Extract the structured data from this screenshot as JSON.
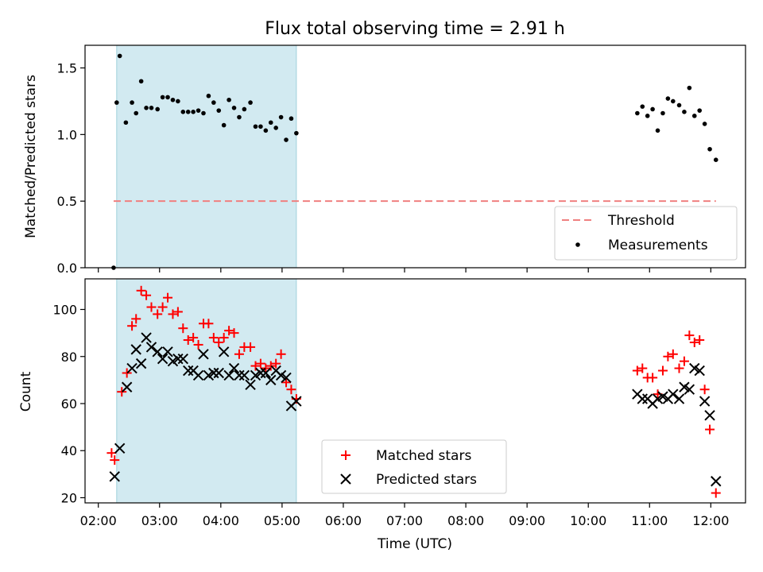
{
  "chart_data": [
    {
      "type": "scatter",
      "title": "Flux total observing time = 2.91 h",
      "xlabel": "",
      "ylabel": "Matched/Predicted stars",
      "xlim": [
        "01:47",
        "12:34"
      ],
      "ylim": [
        0,
        1.67
      ],
      "yticks": [
        "0.0",
        "0.5",
        "1.0",
        "1.5"
      ],
      "shaded_region": {
        "start": "02:18",
        "end": "05:14",
        "color": "#add8e6"
      },
      "threshold": {
        "name": "Threshold",
        "value": 0.5,
        "x_start": "02:15",
        "x_end": "12:05",
        "color": "#f08080"
      },
      "legend": {
        "position": "bottom-right",
        "entries": [
          "Threshold",
          "Measurements"
        ]
      },
      "series": [
        {
          "name": "Measurements",
          "marker": "dot",
          "color": "#000000",
          "points": [
            [
              "02:15",
              0.0
            ],
            [
              "02:18",
              1.24
            ],
            [
              "02:21",
              1.59
            ],
            [
              "02:27",
              1.09
            ],
            [
              "02:33",
              1.24
            ],
            [
              "02:37",
              1.16
            ],
            [
              "02:42",
              1.4
            ],
            [
              "02:47",
              1.2
            ],
            [
              "02:52",
              1.2
            ],
            [
              "02:58",
              1.19
            ],
            [
              "03:03",
              1.28
            ],
            [
              "03:08",
              1.28
            ],
            [
              "03:13",
              1.26
            ],
            [
              "03:18",
              1.25
            ],
            [
              "03:23",
              1.17
            ],
            [
              "03:28",
              1.17
            ],
            [
              "03:33",
              1.17
            ],
            [
              "03:38",
              1.18
            ],
            [
              "03:43",
              1.16
            ],
            [
              "03:48",
              1.29
            ],
            [
              "03:53",
              1.24
            ],
            [
              "03:58",
              1.18
            ],
            [
              "04:03",
              1.07
            ],
            [
              "04:08",
              1.26
            ],
            [
              "04:13",
              1.2
            ],
            [
              "04:18",
              1.13
            ],
            [
              "04:23",
              1.19
            ],
            [
              "04:29",
              1.24
            ],
            [
              "04:34",
              1.06
            ],
            [
              "04:39",
              1.06
            ],
            [
              "04:44",
              1.03
            ],
            [
              "04:49",
              1.09
            ],
            [
              "04:54",
              1.05
            ],
            [
              "04:59",
              1.13
            ],
            [
              "05:04",
              0.96
            ],
            [
              "05:09",
              1.12
            ],
            [
              "05:14",
              1.01
            ],
            [
              "10:48",
              1.16
            ],
            [
              "10:53",
              1.21
            ],
            [
              "10:58",
              1.14
            ],
            [
              "11:03",
              1.19
            ],
            [
              "11:08",
              1.03
            ],
            [
              "11:13",
              1.16
            ],
            [
              "11:18",
              1.27
            ],
            [
              "11:23",
              1.25
            ],
            [
              "11:29",
              1.22
            ],
            [
              "11:34",
              1.17
            ],
            [
              "11:39",
              1.35
            ],
            [
              "11:44",
              1.14
            ],
            [
              "11:49",
              1.18
            ],
            [
              "11:54",
              1.08
            ],
            [
              "11:59",
              0.89
            ],
            [
              "12:05",
              0.81
            ]
          ]
        }
      ]
    },
    {
      "type": "scatter",
      "title": "",
      "xlabel": "Time (UTC)",
      "ylabel": "Count",
      "xlim": [
        "01:47",
        "12:34"
      ],
      "ylim": [
        17.8,
        113
      ],
      "xticks": [
        "02:00",
        "03:00",
        "04:00",
        "05:00",
        "06:00",
        "07:00",
        "08:00",
        "09:00",
        "10:00",
        "11:00",
        "12:00"
      ],
      "yticks": [
        "20",
        "40",
        "60",
        "80",
        "100"
      ],
      "shaded_region": {
        "start": "02:18",
        "end": "05:14",
        "color": "#add8e6"
      },
      "legend": {
        "position": "bottom-center",
        "entries": [
          "Matched stars",
          "Predicted stars"
        ]
      },
      "series": [
        {
          "name": "Matched stars",
          "marker": "plus",
          "color": "#ff0000",
          "points": [
            [
              "02:13",
              39
            ],
            [
              "02:16",
              36
            ],
            [
              "02:23",
              65
            ],
            [
              "02:28",
              73
            ],
            [
              "02:33",
              93
            ],
            [
              "02:37",
              96
            ],
            [
              "02:42",
              108
            ],
            [
              "02:47",
              106
            ],
            [
              "02:52",
              101
            ],
            [
              "02:58",
              98
            ],
            [
              "03:03",
              101
            ],
            [
              "03:08",
              105
            ],
            [
              "03:13",
              98
            ],
            [
              "03:18",
              99
            ],
            [
              "03:23",
              92
            ],
            [
              "03:28",
              87
            ],
            [
              "03:33",
              88
            ],
            [
              "03:38",
              85
            ],
            [
              "03:43",
              94
            ],
            [
              "03:48",
              94
            ],
            [
              "03:53",
              88
            ],
            [
              "03:58",
              86
            ],
            [
              "04:03",
              88
            ],
            [
              "04:08",
              91
            ],
            [
              "04:13",
              90
            ],
            [
              "04:18",
              81
            ],
            [
              "04:23",
              84
            ],
            [
              "04:29",
              84
            ],
            [
              "04:34",
              76
            ],
            [
              "04:39",
              77
            ],
            [
              "04:44",
              75
            ],
            [
              "04:49",
              76
            ],
            [
              "04:54",
              77
            ],
            [
              "04:59",
              81
            ],
            [
              "05:04",
              69
            ],
            [
              "05:09",
              66
            ],
            [
              "05:14",
              62
            ],
            [
              "10:48",
              74
            ],
            [
              "10:53",
              75
            ],
            [
              "10:58",
              71
            ],
            [
              "11:03",
              71
            ],
            [
              "11:08",
              64
            ],
            [
              "11:13",
              74
            ],
            [
              "11:18",
              80
            ],
            [
              "11:23",
              81
            ],
            [
              "11:29",
              75
            ],
            [
              "11:34",
              78
            ],
            [
              "11:39",
              89
            ],
            [
              "11:44",
              86
            ],
            [
              "11:49",
              87
            ],
            [
              "11:54",
              66
            ],
            [
              "11:59",
              49
            ],
            [
              "12:05",
              22
            ]
          ]
        },
        {
          "name": "Predicted stars",
          "marker": "x",
          "color": "#000000",
          "points": [
            [
              "02:16",
              29
            ],
            [
              "02:21",
              41
            ],
            [
              "02:28",
              67
            ],
            [
              "02:33",
              75
            ],
            [
              "02:37",
              83
            ],
            [
              "02:42",
              77
            ],
            [
              "02:47",
              88
            ],
            [
              "02:52",
              84
            ],
            [
              "02:58",
              82
            ],
            [
              "03:03",
              79
            ],
            [
              "03:08",
              82
            ],
            [
              "03:13",
              78
            ],
            [
              "03:18",
              79
            ],
            [
              "03:23",
              79
            ],
            [
              "03:28",
              74
            ],
            [
              "03:33",
              74
            ],
            [
              "03:38",
              72
            ],
            [
              "03:43",
              81
            ],
            [
              "03:48",
              72
            ],
            [
              "03:53",
              73
            ],
            [
              "03:58",
              73
            ],
            [
              "04:03",
              82
            ],
            [
              "04:08",
              72
            ],
            [
              "04:13",
              75
            ],
            [
              "04:18",
              72
            ],
            [
              "04:23",
              72
            ],
            [
              "04:29",
              68
            ],
            [
              "04:34",
              72
            ],
            [
              "04:39",
              73
            ],
            [
              "04:44",
              73
            ],
            [
              "04:49",
              70
            ],
            [
              "04:54",
              74
            ],
            [
              "04:59",
              72
            ],
            [
              "05:04",
              71
            ],
            [
              "05:09",
              59
            ],
            [
              "05:14",
              61
            ],
            [
              "10:48",
              64
            ],
            [
              "10:53",
              62
            ],
            [
              "10:58",
              62
            ],
            [
              "11:03",
              60
            ],
            [
              "11:08",
              62
            ],
            [
              "11:13",
              63
            ],
            [
              "11:18",
              62
            ],
            [
              "11:23",
              64
            ],
            [
              "11:29",
              62
            ],
            [
              "11:34",
              67
            ],
            [
              "11:39",
              66
            ],
            [
              "11:44",
              75
            ],
            [
              "11:49",
              74
            ],
            [
              "11:54",
              61
            ],
            [
              "11:59",
              55
            ],
            [
              "12:05",
              27
            ]
          ]
        }
      ]
    }
  ]
}
